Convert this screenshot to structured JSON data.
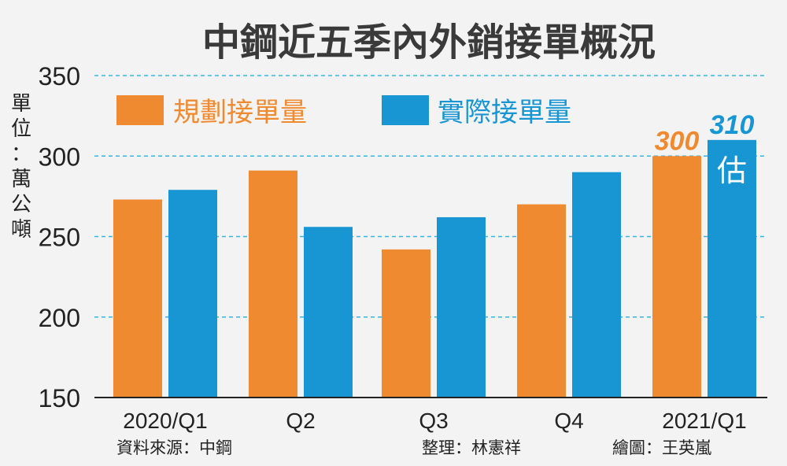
{
  "colors": {
    "background": "#f2f3f2",
    "planned": "#f08a30",
    "actual": "#1896d3",
    "text": "#222222",
    "grid": "#37b6e4"
  },
  "chart_data": {
    "type": "bar",
    "title": "中鋼近五季內外銷接單概況",
    "ylabel": "單位：萬公噸",
    "xlabel": "",
    "categories": [
      "2020/Q1",
      "Q2",
      "Q3",
      "Q4",
      "2021/Q1"
    ],
    "series": [
      {
        "name": "規劃接單量",
        "values": [
          273,
          291,
          242,
          270,
          300
        ]
      },
      {
        "name": "實際接單量",
        "values": [
          279,
          256,
          262,
          290,
          310
        ]
      }
    ],
    "ylim": [
      150,
      350
    ],
    "yticks": [
      150,
      200,
      250,
      300,
      350
    ],
    "grid": true,
    "legend": "top-left",
    "data_labels": {
      "planned_last": "300",
      "actual_last": "310"
    },
    "annotation": "估"
  },
  "footer": {
    "source": "資料來源：中鋼",
    "editor": "整理：林憲祥",
    "illustrator": "繪圖：王英嵐"
  }
}
